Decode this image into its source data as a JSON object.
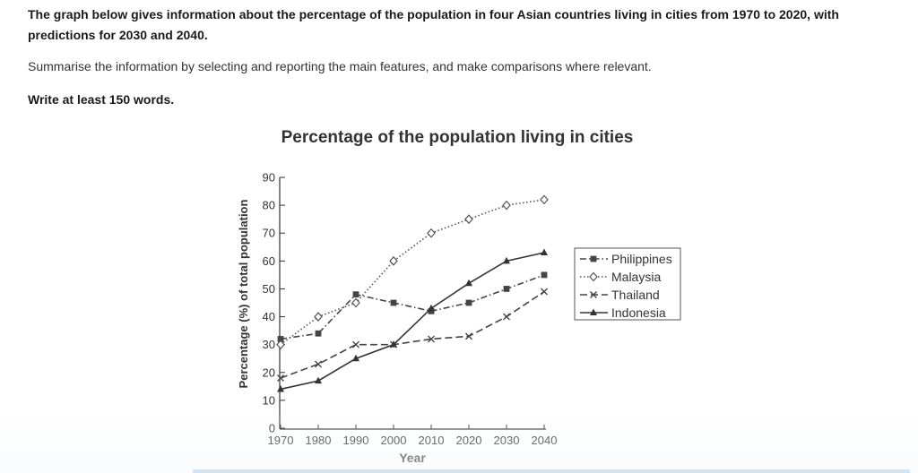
{
  "task": {
    "prompt": "The graph below gives information about the percentage of the population in four Asian countries living in cities from 1970 to 2020, with predictions for 2030 and 2040.",
    "instruction": "Summarise the information by selecting and reporting the main features, and make comparisons where relevant.",
    "min_words": "Write at least 150 words."
  },
  "chart_data": {
    "type": "line",
    "title": "Percentage of the population living in cities",
    "xlabel": "Year",
    "ylabel": "Percentage (%) of total population",
    "x": [
      1970,
      1980,
      1990,
      2000,
      2010,
      2020,
      2030,
      2040
    ],
    "xticks": [
      "1970",
      "1980",
      "1990",
      "2000",
      "2010",
      "2020",
      "2030",
      "2040"
    ],
    "yticks": [
      "0",
      "10",
      "20",
      "30",
      "40",
      "50",
      "60",
      "70",
      "80",
      "90"
    ],
    "ylim": [
      0,
      90
    ],
    "grid": false,
    "legend_position": "right",
    "series": [
      {
        "name": "Philippines",
        "marker": "square",
        "dash": "dash-dot",
        "color": "#444444",
        "values": [
          32,
          34,
          48,
          45,
          42,
          45,
          50,
          55
        ]
      },
      {
        "name": "Malaysia",
        "marker": "diamond",
        "dash": "dotted",
        "color": "#555555",
        "values": [
          30,
          40,
          45,
          60,
          70,
          75,
          80,
          82
        ]
      },
      {
        "name": "Thailand",
        "marker": "x",
        "dash": "dashed",
        "color": "#444444",
        "values": [
          18,
          23,
          30,
          30,
          32,
          33,
          40,
          49
        ]
      },
      {
        "name": "Indonesia",
        "marker": "triangle",
        "dash": "solid",
        "color": "#333333",
        "values": [
          14,
          17,
          25,
          30,
          43,
          52,
          60,
          63
        ]
      }
    ]
  }
}
